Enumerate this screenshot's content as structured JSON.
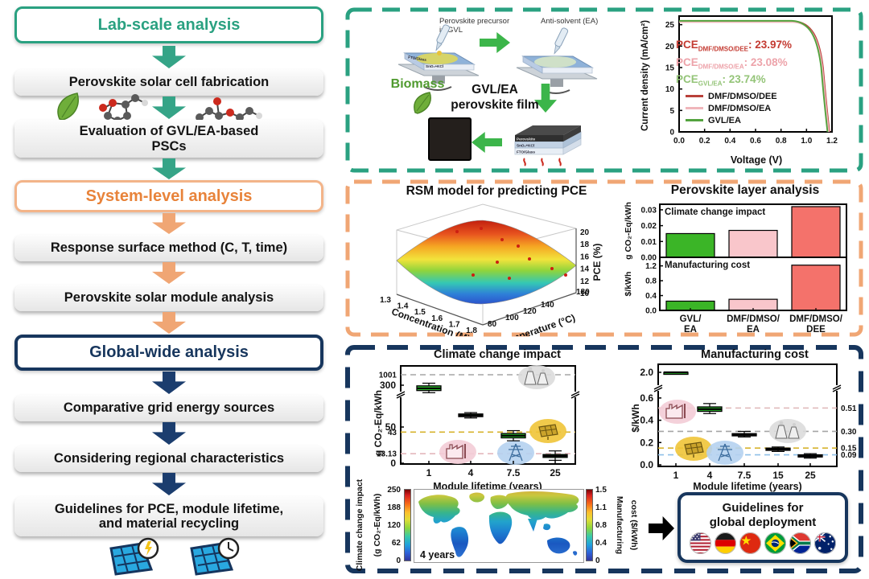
{
  "flowchart": {
    "lab_header": "Lab-scale analysis",
    "system_header": "System-level analysis",
    "global_header": "Global-wide analysis",
    "steps": {
      "fabrication": "Perovskite solar cell fabrication",
      "evaluation": "Evaluation of GVL/EA-based PSCs",
      "rsm": "Response surface method (C, T, time)",
      "module": "Perovskite solar module analysis",
      "grid": "Comparative grid energy sources",
      "regional": "Considering regional characteristics",
      "guidelines": "Guidelines for PCE, module lifetime, and material recycling"
    },
    "colors": {
      "lab": "#2aa181",
      "system": "#e8833a",
      "global": "#17365d"
    }
  },
  "lab_panel": {
    "schematic": {
      "precursor_label": "Perovskite precursor in GVL",
      "antisolvent_label": "Anti-solvent (EA)",
      "substrate_layer1": "SnO₂+KCl",
      "substrate_layer2": "FTO/Glass",
      "stack_layer_top": "Perovskite",
      "biomass_label": "Biomass",
      "film_label": "GVL/EA perovskite film"
    },
    "pce_annotations": [
      {
        "prefix": "PCE",
        "sub": "DMF/DMSO/DEE",
        "value": "23.97%",
        "color": "#c43b32"
      },
      {
        "prefix": "PCE",
        "sub": "DMF/DMSO/EA",
        "value": "23.08%",
        "color": "#eda3aa"
      },
      {
        "prefix": "PCE",
        "sub": "GVL/EA",
        "value": "23.74%",
        "color": "#94c478"
      }
    ]
  },
  "global_panel": {
    "deployment": {
      "line1": "Guidelines for",
      "line2": "global deployment",
      "flags": [
        "United States",
        "Germany",
        "China",
        "Brazil",
        "South Africa",
        "Australia"
      ]
    }
  },
  "chart_data": [
    {
      "id": "jv",
      "type": "line",
      "xlabel": "Voltage (V)",
      "ylabel": "Current density (mA/cm²)",
      "xlim": [
        0,
        1.2
      ],
      "ylim": [
        0,
        27
      ],
      "xticks": [
        "0.0",
        "0.2",
        "0.4",
        "0.6",
        "0.8",
        "1.0",
        "1.2"
      ],
      "yticks": [
        "0",
        "5",
        "10",
        "15",
        "20",
        "25"
      ],
      "legend_position": "lower-left",
      "series": [
        {
          "name": "DMF/DMSO/DEE",
          "color": "#b9413a",
          "jsc": 25.8,
          "voc": 1.18,
          "pce": "23.97%"
        },
        {
          "name": "DMF/DMSO/EA",
          "color": "#f0b6bb",
          "jsc": 25.6,
          "voc": 1.175,
          "pce": "23.08%"
        },
        {
          "name": "GVL/EA",
          "color": "#53a33e",
          "jsc": 25.9,
          "voc": 1.165,
          "pce": "23.74%"
        }
      ]
    },
    {
      "id": "rsm",
      "type": "surface",
      "title": "RSM model for predicting PCE",
      "xlabel": "Concentration (M)",
      "ylabel": "Temperature (°C)",
      "zlabel": "PCE (%)",
      "xticks": [
        "1.3",
        "1.4",
        "1.5",
        "1.6",
        "1.7",
        "1.8"
      ],
      "yticks": [
        "80",
        "100",
        "120",
        "140",
        "180"
      ],
      "zticks": [
        "10",
        "12",
        "14",
        "16",
        "18",
        "20"
      ],
      "description": "Curved response surface, red high-PCE ridge to blue valley, red experimental points"
    },
    {
      "id": "layer_bars",
      "type": "bar",
      "title": "Perovskite layer analysis",
      "categories": [
        [
          "GVL/",
          "EA"
        ],
        [
          "DMF/DMSO/",
          "EA"
        ],
        [
          "DMF/DMSO/",
          "DEE"
        ]
      ],
      "bar_colors": [
        "#3bb527",
        "#f9c6cb",
        "#f4726b"
      ],
      "panels": [
        {
          "label": "Climate change impact",
          "ylabel": "g CO₂-Eq/kWh",
          "yticks": [
            "0.00",
            "0.01",
            "0.02",
            "0.03"
          ],
          "ytick_values": [
            0,
            0.01,
            0.02,
            0.03
          ],
          "ymax": 0.0335,
          "values": [
            0.015,
            0.017,
            0.032
          ]
        },
        {
          "label": "Manufacturing cost",
          "ylabel": "$/kWh",
          "yticks": [
            "0.0",
            "0.4",
            "0.8",
            "1.2"
          ],
          "ytick_values": [
            0,
            0.4,
            0.8,
            1.2
          ],
          "ymax": 1.43,
          "values": [
            0.25,
            0.3,
            1.22
          ]
        }
      ]
    },
    {
      "id": "climate_box",
      "type": "box",
      "title": "Climate change impact",
      "xlabel": "Module lifetime (years)",
      "ylabel": "g CO₂-Eq/kWh",
      "categories": [
        "1",
        "4",
        "7.5",
        "25"
      ],
      "yticks": [
        "0",
        "50",
        "300"
      ],
      "ytick_values": [
        0,
        50,
        300
      ],
      "axis_break": true,
      "boxes": [
        {
          "lifetime": "1",
          "low": 255,
          "q1": 268,
          "median": 281,
          "q3": 296,
          "high": 312
        },
        {
          "lifetime": "4",
          "low": 104,
          "q1": 112,
          "median": 120,
          "q3": 128,
          "high": 136
        },
        {
          "lifetime": "7.5",
          "low": 31,
          "q1": 35,
          "median": 38,
          "q3": 41,
          "high": 45
        },
        {
          "lifetime": "25",
          "low": 4,
          "q1": 8,
          "median": 10,
          "q3": 12,
          "high": 17
        }
      ],
      "reference_lines": [
        {
          "label": "1001",
          "value": 1001,
          "color": "#a5a5a5"
        },
        {
          "label": "43",
          "value": 43,
          "color": "#d7b32e"
        },
        {
          "label": "13.13",
          "value": 13.13,
          "color": "#e3b7bc"
        }
      ],
      "icons": [
        {
          "name": "power-plant",
          "color": "#dcdcdc"
        },
        {
          "name": "coal-factory",
          "color": "#f3ccd6"
        },
        {
          "name": "grid-tower",
          "color": "#b5d2ef"
        },
        {
          "name": "solar-panel",
          "color": "#f0c437"
        }
      ]
    },
    {
      "id": "cost_box",
      "type": "box",
      "title": "Manufacturing cost",
      "xlabel": "Module lifetime (years)",
      "ylabel": "$/kWh",
      "categories": [
        "1",
        "4",
        "7.5",
        "15",
        "25"
      ],
      "yticks": [
        "0.0",
        "0.2",
        "0.4",
        "0.6",
        "2.0"
      ],
      "ytick_values": [
        0,
        0.2,
        0.4,
        0.6,
        2
      ],
      "axis_break": true,
      "boxes": [
        {
          "lifetime": "1",
          "low": 1.93,
          "q1": 1.96,
          "median": 2.0,
          "q3": 2.04,
          "high": 2.08
        },
        {
          "lifetime": "4",
          "low": 0.46,
          "q1": 0.48,
          "median": 0.5,
          "q3": 0.52,
          "high": 0.55
        },
        {
          "lifetime": "7.5",
          "low": 0.25,
          "q1": 0.26,
          "median": 0.27,
          "q3": 0.28,
          "high": 0.3
        },
        {
          "lifetime": "15",
          "low": 0.12,
          "q1": 0.13,
          "median": 0.14,
          "q3": 0.15,
          "high": 0.16
        },
        {
          "lifetime": "25",
          "low": 0.06,
          "q1": 0.07,
          "median": 0.08,
          "q3": 0.09,
          "high": 0.1
        }
      ],
      "reference_lines": [
        {
          "label": "0.51",
          "value": 0.51,
          "color": "#dfb6b8"
        },
        {
          "label": "0.30",
          "value": 0.3,
          "color": "#a5a5a5"
        },
        {
          "label": "0.15",
          "value": 0.15,
          "color": "#d7b32e"
        },
        {
          "label": "0.09",
          "value": 0.09,
          "color": "#8fc0e8"
        }
      ],
      "icons": [
        {
          "name": "coal-factory",
          "color": "#f3ccd6"
        },
        {
          "name": "solar-panel",
          "color": "#f0c437"
        },
        {
          "name": "grid-tower",
          "color": "#b5d2ef"
        },
        {
          "name": "power-plant",
          "color": "#dcdcdc"
        }
      ]
    },
    {
      "id": "world_map",
      "type": "heatmap",
      "annotation": "4 years",
      "colorbar_left": {
        "label_lines": [
          "Climate change impact",
          "(g CO₂-Eq/kWh)"
        ],
        "ticks": [
          "250",
          "188",
          "120",
          "62",
          "0"
        ]
      },
      "colorbar_right": {
        "label_lines": [
          "Manufacturing",
          "cost ($/kWh)"
        ],
        "ticks": [
          "1.5",
          "1.1",
          "0.8",
          "0.4",
          "0"
        ]
      },
      "description": "World map, blue (low impact/cost) at low latitudes, green-yellow at high northern latitudes"
    }
  ]
}
